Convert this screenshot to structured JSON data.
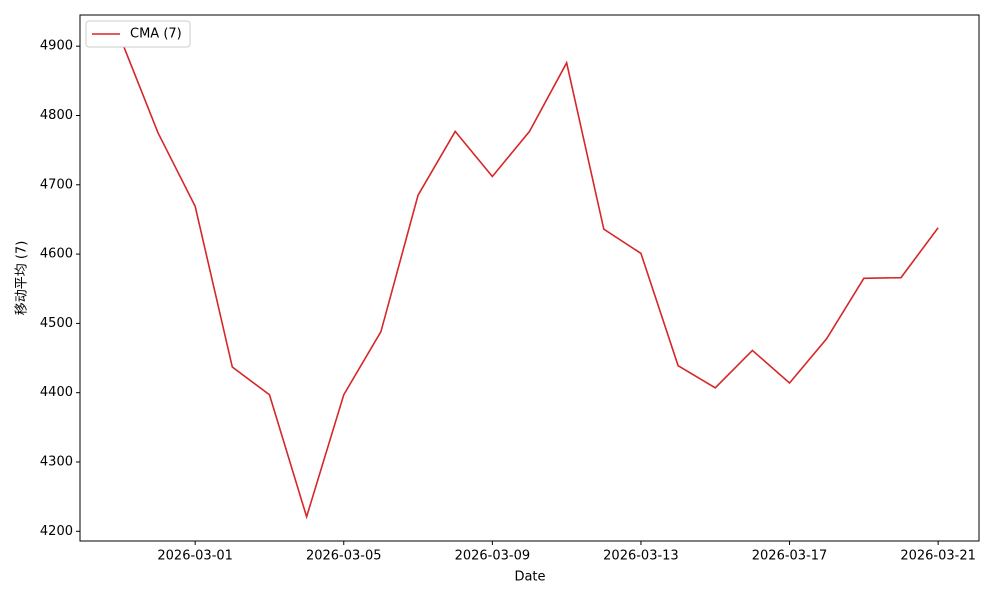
{
  "chart_data": {
    "type": "line",
    "x_label": "Date",
    "y_label": "移动平均 (7)",
    "x": [
      "2026-02-27",
      "2026-02-28",
      "2026-03-01",
      "2026-03-02",
      "2026-03-03",
      "2026-03-04",
      "2026-03-05",
      "2026-03-06",
      "2026-03-07",
      "2026-03-08",
      "2026-03-09",
      "2026-03-10",
      "2026-03-11",
      "2026-03-12",
      "2026-03-13",
      "2026-03-14",
      "2026-03-15",
      "2026-03-16",
      "2026-03-17",
      "2026-03-18",
      "2026-03-19",
      "2026-03-20",
      "2026-03-21"
    ],
    "series": [
      {
        "name": "CMA (7)",
        "color": "#d62728",
        "values": [
          4910,
          4775,
          4669,
          4437,
          4397,
          4221,
          4397,
          4488,
          4685,
          4777,
          4712,
          4777,
          4876,
          4636,
          4601,
          4439,
          4407,
          4461,
          4414,
          4478,
          4565,
          4566,
          4638
        ]
      }
    ],
    "xlim": [
      "2026-02-25T21:36",
      "2026-03-22T02:24"
    ],
    "xticks": [
      "2026-03-01",
      "2026-03-05",
      "2026-03-09",
      "2026-03-13",
      "2026-03-17",
      "2026-03-21"
    ],
    "ylim": [
      4186,
      4945
    ],
    "yticks": [
      4200,
      4300,
      4400,
      4500,
      4600,
      4700,
      4800,
      4900
    ],
    "legend": "upper left"
  }
}
